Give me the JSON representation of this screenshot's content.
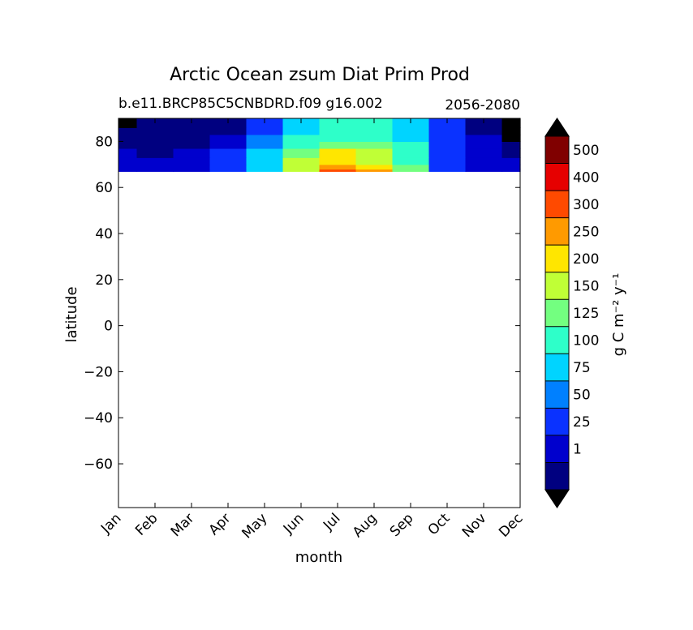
{
  "chart_data": {
    "type": "heatmap",
    "title": "Arctic Ocean zsum Diat Prim Prod",
    "subtitle_left": "b.e11.BRCP85C5CNBDRD.f09 g16.002",
    "subtitle_right": "2056-2080",
    "xlabel": "month",
    "ylabel": "latitude",
    "xlim": [
      1,
      12
    ],
    "ylim": [
      -79,
      90
    ],
    "x_ticks": [
      {
        "value": 1,
        "label": "Jan"
      },
      {
        "value": 2,
        "label": "Feb"
      },
      {
        "value": 3,
        "label": "Mar"
      },
      {
        "value": 4,
        "label": "Apr"
      },
      {
        "value": 5,
        "label": "May"
      },
      {
        "value": 6,
        "label": "Jun"
      },
      {
        "value": 7,
        "label": "Jul"
      },
      {
        "value": 8,
        "label": "Aug"
      },
      {
        "value": 9,
        "label": "Sep"
      },
      {
        "value": 10,
        "label": "Oct"
      },
      {
        "value": 11,
        "label": "Nov"
      },
      {
        "value": 12,
        "label": "Dec"
      }
    ],
    "y_ticks": [
      {
        "value": 80,
        "label": "80"
      },
      {
        "value": 60,
        "label": "60"
      },
      {
        "value": 40,
        "label": "40"
      },
      {
        "value": 20,
        "label": "20"
      },
      {
        "value": 0,
        "label": "0"
      },
      {
        "value": -20,
        "label": "−20"
      },
      {
        "value": -40,
        "label": "−40"
      },
      {
        "value": -60,
        "label": "−60"
      }
    ],
    "data_lat_range": [
      67,
      90
    ],
    "colorbar": {
      "label": "g C m⁻² y⁻¹",
      "levels": [
        {
          "label": "",
          "color": "#000080"
        },
        {
          "label": "1",
          "color": "#0000cd"
        },
        {
          "label": "25",
          "color": "#0a32ff"
        },
        {
          "label": "50",
          "color": "#0080ff"
        },
        {
          "label": "75",
          "color": "#00d4ff"
        },
        {
          "label": "100",
          "color": "#2effc9"
        },
        {
          "label": "125",
          "color": "#73ff80"
        },
        {
          "label": "150",
          "color": "#c0ff36"
        },
        {
          "label": "200",
          "color": "#ffe600"
        },
        {
          "label": "250",
          "color": "#ff9a00"
        },
        {
          "label": "300",
          "color": "#ff4a00"
        },
        {
          "label": "400",
          "color": "#e60000"
        },
        {
          "label": "500",
          "color": "#800000"
        }
      ],
      "extend": "both",
      "extend_colors": {
        "below": "#000000",
        "above": "#000000"
      }
    },
    "band_grid": {
      "months": [
        1,
        2,
        3,
        4,
        5,
        6,
        7,
        8,
        9,
        10,
        11,
        12
      ],
      "lat_edges": [
        67,
        68,
        70,
        73,
        77,
        80,
        83,
        86,
        90
      ],
      "level_index_by_lat_band": [
        [
          1,
          1,
          1,
          2,
          4,
          7,
          10,
          9,
          6,
          2,
          1,
          1
        ],
        [
          1,
          1,
          1,
          2,
          4,
          7,
          9,
          8,
          6,
          2,
          1,
          1
        ],
        [
          1,
          1,
          1,
          2,
          4,
          7,
          8,
          7,
          5,
          2,
          1,
          1
        ],
        [
          1,
          0,
          1,
          2,
          4,
          6,
          8,
          7,
          5,
          2,
          1,
          0
        ],
        [
          0,
          0,
          0,
          1,
          3,
          5,
          6,
          6,
          5,
          2,
          1,
          0
        ],
        [
          0,
          0,
          0,
          1,
          3,
          5,
          5,
          5,
          4,
          2,
          1,
          -1
        ],
        [
          0,
          0,
          0,
          0,
          2,
          4,
          5,
          5,
          4,
          2,
          0,
          -1
        ],
        [
          -1,
          0,
          0,
          0,
          2,
          4,
          5,
          5,
          4,
          2,
          0,
          -1
        ]
      ]
    }
  }
}
